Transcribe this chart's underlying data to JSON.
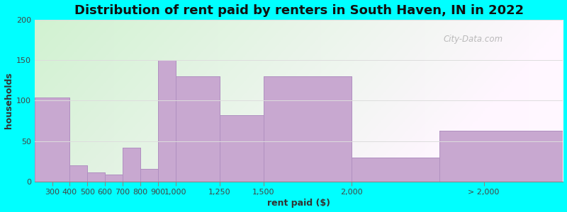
{
  "title": "Distribution of rent paid by renters in South Haven, IN in 2022",
  "xlabel": "rent paid ($)",
  "ylabel": "households",
  "bar_edges": [
    200,
    400,
    500,
    600,
    700,
    800,
    900,
    1000,
    1250,
    1500,
    2000,
    2500,
    3200
  ],
  "bar_values": [
    104,
    20,
    11,
    9,
    42,
    16,
    150,
    130,
    82,
    130,
    30,
    63
  ],
  "tick_positions": [
    300,
    400,
    500,
    600,
    700,
    800,
    900,
    1000,
    1250,
    1500,
    2000,
    2750
  ],
  "tick_labels": [
    "300",
    "400",
    "500",
    "600",
    "700",
    "800",
    "900",
    "1,000",
    "1,250",
    "1,500",
    "2,000",
    "> 2,000"
  ],
  "bar_color": "#c8a8d0",
  "bar_edge_color": "#b090c0",
  "ylim": [
    0,
    200
  ],
  "yticks": [
    0,
    50,
    100,
    150,
    200
  ],
  "background_color": "#00ffff",
  "title_fontsize": 13,
  "axis_label_fontsize": 9,
  "tick_fontsize": 8,
  "watermark": "City-Data.com"
}
